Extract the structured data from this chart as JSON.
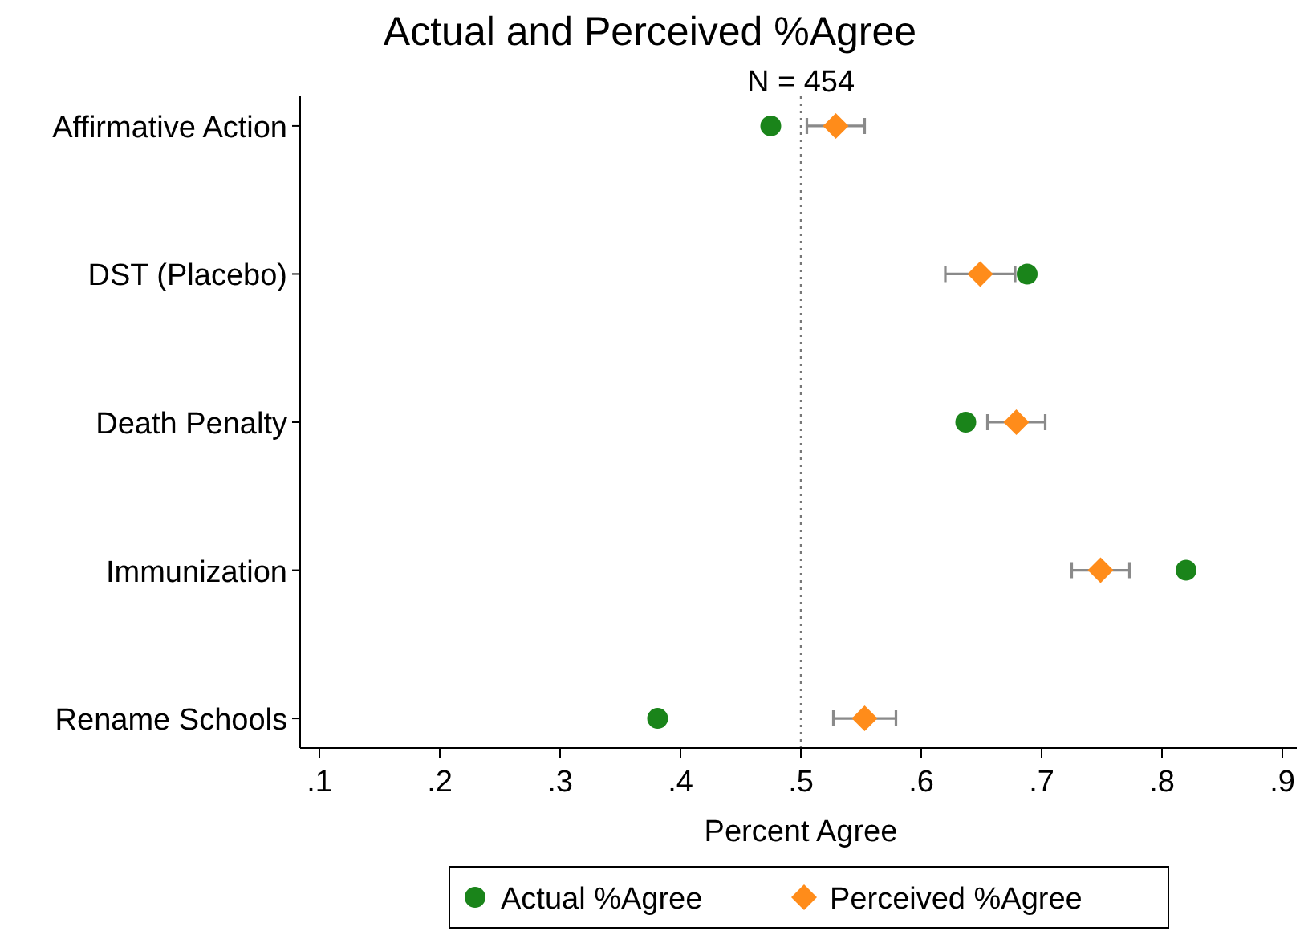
{
  "chart_data": {
    "type": "scatter",
    "title": "Actual and Perceived %Agree",
    "subtitle": "N = 454",
    "xlabel": "Percent Agree",
    "orientation": "horizontal",
    "categories": [
      "Affirmative Action",
      "DST (Placebo)",
      "Death Penalty",
      "Immunization",
      "Rename Schools"
    ],
    "series": [
      {
        "name": "Actual %Agree",
        "color": "#1a841a",
        "marker": "circle",
        "values": [
          0.475,
          0.688,
          0.637,
          0.82,
          0.381
        ]
      },
      {
        "name": "Perceived %Agree",
        "color": "#ff8c1a",
        "marker": "diamond",
        "values": [
          0.529,
          0.649,
          0.679,
          0.749,
          0.553
        ],
        "errors": [
          0.024,
          0.029,
          0.024,
          0.024,
          0.026
        ]
      }
    ],
    "xlim": [
      0.084,
      0.912
    ],
    "xticks": [
      {
        "value": 0.1,
        "label": ".1"
      },
      {
        "value": 0.2,
        "label": ".2"
      },
      {
        "value": 0.3,
        "label": ".3"
      },
      {
        "value": 0.4,
        "label": ".4"
      },
      {
        "value": 0.5,
        "label": ".5"
      },
      {
        "value": 0.6,
        "label": ".6"
      },
      {
        "value": 0.7,
        "label": ".7"
      },
      {
        "value": 0.8,
        "label": ".8"
      },
      {
        "value": 0.9,
        "label": ".9"
      }
    ],
    "ref_lines": [
      {
        "axis": "x",
        "value": 0.5,
        "line_style": "dotted",
        "color": "#777777"
      }
    ],
    "grid": false,
    "legend": "bottom"
  }
}
